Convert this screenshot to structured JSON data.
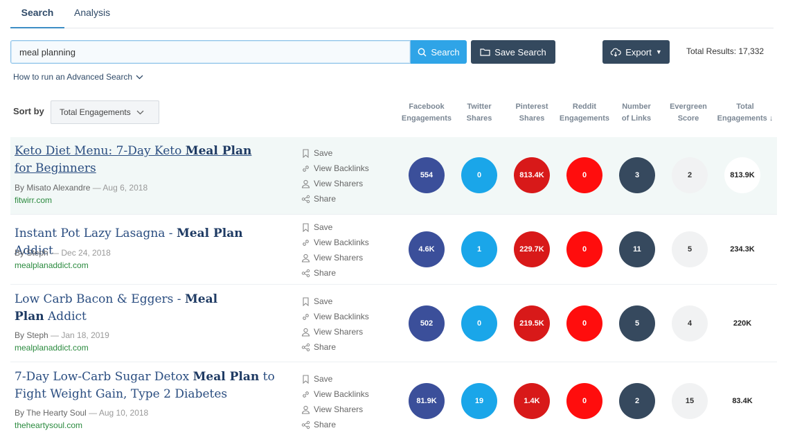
{
  "tabs": [
    {
      "label": "Search"
    },
    {
      "label": "Analysis"
    }
  ],
  "search": {
    "value": "meal planning",
    "button_label": "Search",
    "save_label": "Save Search",
    "export_label": "Export",
    "total_results": "Total Results: 17,332",
    "advanced_link": "How to run an Advanced Search"
  },
  "sort": {
    "label": "Sort by",
    "selected": "Total Engagements"
  },
  "columns": [
    {
      "line1": "Facebook",
      "line2": "Engagements"
    },
    {
      "line1": "Twitter",
      "line2": "Shares"
    },
    {
      "line1": "Pinterest",
      "line2": "Shares"
    },
    {
      "line1": "Reddit",
      "line2": "Engagements"
    },
    {
      "line1": "Number",
      "line2": "of Links"
    },
    {
      "line1": "Evergreen",
      "line2": "Score"
    },
    {
      "line1": "Total",
      "line2": "Engagements ↓"
    }
  ],
  "actions": {
    "save": "Save",
    "backlinks": "View Backlinks",
    "sharers": "View Sharers",
    "share": "Share"
  },
  "results": [
    {
      "title_pre": "Keto Diet Menu: 7-Day Keto ",
      "title_bold": "Meal Plan",
      "title_post": " for Beginners",
      "author": "By Misato Alexandre",
      "date": " — Aug 6, 2018",
      "domain": "fitwirr.com",
      "facebook": "554",
      "twitter": "0",
      "pinterest": "813.4K",
      "reddit": "0",
      "links": "3",
      "evergreen": "2",
      "total": "813.9K"
    },
    {
      "title_pre": "Instant Pot Lazy Lasagna - ",
      "title_bold": "Meal Plan",
      "title_post": " Addict",
      "author": "By Steph",
      "date": " — Dec 24, 2018",
      "domain": "mealplanaddict.com",
      "facebook": "4.6K",
      "twitter": "1",
      "pinterest": "229.7K",
      "reddit": "0",
      "links": "11",
      "evergreen": "5",
      "total": "234.3K"
    },
    {
      "title_pre": "Low Carb Bacon & Eggers - ",
      "title_bold": "Meal Plan",
      "title_post": " Addict",
      "author": "By Steph",
      "date": " — Jan 18, 2019",
      "domain": "mealplanaddict.com",
      "facebook": "502",
      "twitter": "0",
      "pinterest": "219.5K",
      "reddit": "0",
      "links": "5",
      "evergreen": "4",
      "total": "220K"
    },
    {
      "title_pre": "7-Day Low-Carb Sugar Detox ",
      "title_bold": "Meal Plan",
      "title_post": " to Fight Weight Gain, Type 2 Diabetes",
      "author": "By The Hearty Soul",
      "date": " — Aug 10, 2018",
      "domain": "theheartysoul.com",
      "facebook": "81.9K",
      "twitter": "19",
      "pinterest": "1.4K",
      "reddit": "0",
      "links": "2",
      "evergreen": "15",
      "total": "83.4K"
    }
  ]
}
